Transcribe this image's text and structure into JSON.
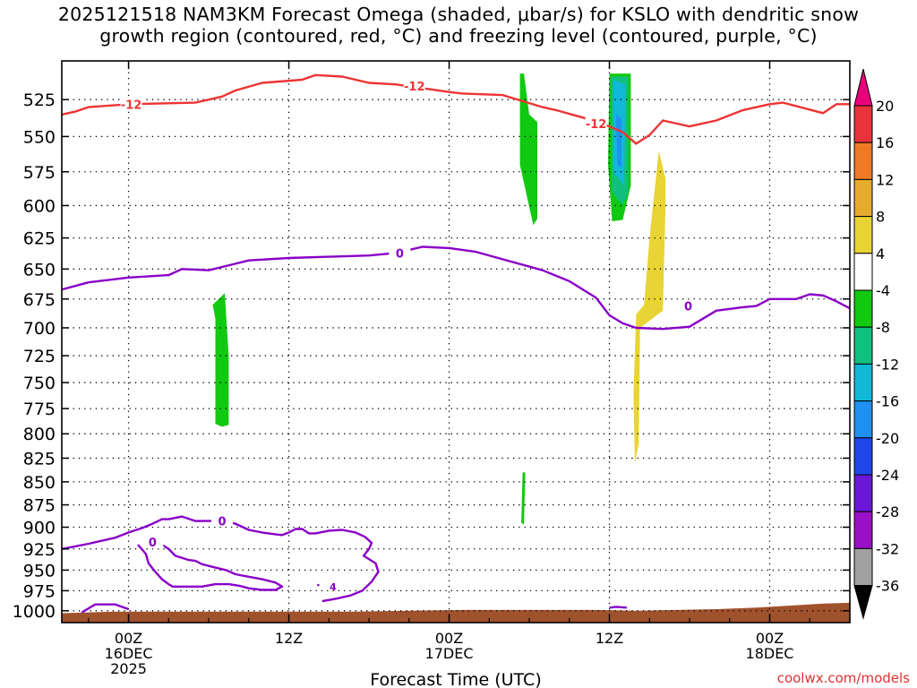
{
  "title_line1": "2025121518 NAM3KM Forecast Omega (shaded, μbar/s) for KSLO with dendritic snow",
  "title_line2": "growth region (contoured, red, °C) and freezing level (contoured, purple, °C)",
  "watermark": "coolwx.com/models",
  "chart_data": {
    "type": "contour",
    "xlabel": "Forecast Time (UTC)",
    "ylabel": "",
    "x_range_hours": [
      -5,
      54
    ],
    "y_range_hpa": [
      1015,
      500
    ],
    "y_scale": "log-pressure (reversed)",
    "grid": true,
    "y_ticks": [
      525,
      550,
      575,
      600,
      625,
      650,
      675,
      700,
      725,
      750,
      775,
      800,
      825,
      850,
      875,
      900,
      925,
      950,
      975,
      1000
    ],
    "x_ticks": [
      {
        "hour": 0,
        "lines": [
          "00Z",
          "16DEC",
          "2025"
        ]
      },
      {
        "hour": 12,
        "lines": [
          "12Z"
        ]
      },
      {
        "hour": 24,
        "lines": [
          "00Z",
          "17DEC"
        ]
      },
      {
        "hour": 36,
        "lines": [
          "12Z"
        ]
      },
      {
        "hour": 48,
        "lines": [
          "00Z",
          "18DEC"
        ]
      }
    ],
    "colorbar": {
      "labels": [
        "20",
        "16",
        "12",
        "8",
        "4",
        "-4",
        "-8",
        "-12",
        "-16",
        "-20",
        "-24",
        "-28",
        "-32",
        "-36"
      ],
      "colors": [
        "#e8007a",
        "#e8333a",
        "#ee7a26",
        "#e6ab2e",
        "#e8d434",
        "#ffffff",
        "#11c911",
        "#10c07e",
        "#11b8d8",
        "#1f8ff0",
        "#1f46e8",
        "#6a17d8",
        "#9a10c7",
        "#a0a0a0",
        "#000000"
      ]
    },
    "freezing_level_label": "0",
    "freezing_level": [
      [
        -5,
        667
      ],
      [
        -3,
        661
      ],
      [
        0,
        657
      ],
      [
        3,
        655
      ],
      [
        4,
        650
      ],
      [
        6,
        651
      ],
      [
        9,
        643
      ],
      [
        12,
        641
      ],
      [
        15,
        640
      ],
      [
        18,
        639
      ],
      [
        20,
        637
      ],
      [
        22,
        632
      ],
      [
        24,
        633
      ],
      [
        26,
        636
      ],
      [
        28,
        642
      ],
      [
        31,
        651
      ],
      [
        33,
        660
      ],
      [
        35,
        674
      ],
      [
        36,
        689
      ],
      [
        37,
        696
      ],
      [
        38,
        700
      ],
      [
        40,
        701
      ],
      [
        42,
        699
      ],
      [
        44,
        685
      ],
      [
        46,
        682
      ],
      [
        47,
        681
      ],
      [
        48,
        675
      ],
      [
        50,
        675
      ],
      [
        51,
        671
      ],
      [
        52,
        672
      ],
      [
        53,
        677
      ],
      [
        54,
        683
      ]
    ],
    "dgz_label": "-12",
    "dgz_line": [
      [
        -5,
        535
      ],
      [
        -4,
        533
      ],
      [
        -3,
        530
      ],
      [
        0,
        528
      ],
      [
        5,
        527
      ],
      [
        7,
        523
      ],
      [
        8,
        519
      ],
      [
        10,
        514
      ],
      [
        13,
        512
      ],
      [
        14,
        509
      ],
      [
        16,
        510
      ],
      [
        18,
        514
      ],
      [
        20,
        515
      ],
      [
        24,
        520
      ],
      [
        25,
        521
      ],
      [
        28,
        522
      ],
      [
        31,
        530
      ],
      [
        32,
        532
      ],
      [
        34,
        537
      ],
      [
        35,
        540
      ],
      [
        36,
        543
      ],
      [
        37,
        547
      ],
      [
        38,
        555
      ],
      [
        39,
        549
      ],
      [
        40,
        539
      ],
      [
        42,
        543
      ],
      [
        44,
        539
      ],
      [
        46,
        532
      ],
      [
        48,
        528
      ],
      [
        49,
        527
      ],
      [
        52,
        534
      ],
      [
        53,
        528
      ],
      [
        54,
        528
      ]
    ],
    "omega_regions": [
      {
        "color": "#11c911",
        "range": "-8 to -4",
        "poly": [
          [
            6.3,
            680
          ],
          [
            6.5,
            692
          ],
          [
            6.5,
            790
          ],
          [
            7.0,
            793
          ],
          [
            7.5,
            791
          ],
          [
            7.5,
            725
          ],
          [
            7.2,
            670
          ]
        ]
      },
      {
        "color": "#11c911",
        "range": "-8 to -4",
        "poly": [
          [
            29.3,
            508
          ],
          [
            29.3,
            570
          ],
          [
            30.3,
            615
          ],
          [
            30.6,
            610
          ],
          [
            30.6,
            540
          ],
          [
            30.0,
            535
          ],
          [
            29.6,
            508
          ]
        ]
      },
      {
        "color": "#11c911",
        "range": "-8 to -4",
        "poly": [
          [
            29.5,
            840
          ],
          [
            29.4,
            895
          ],
          [
            29.6,
            897
          ],
          [
            29.7,
            840
          ]
        ]
      },
      {
        "color": "#11c911",
        "range": "-8 to -4",
        "poly": [
          [
            36.0,
            508
          ],
          [
            35.9,
            570
          ],
          [
            36.2,
            612
          ],
          [
            37.0,
            611
          ],
          [
            37.6,
            585
          ],
          [
            37.6,
            508
          ]
        ]
      },
      {
        "color": "#10c07e",
        "range": "-12 to -8",
        "poly": [
          [
            36.1,
            510
          ],
          [
            36.2,
            590
          ],
          [
            37.0,
            600
          ],
          [
            37.4,
            590
          ],
          [
            37.4,
            510
          ]
        ]
      },
      {
        "color": "#11b8d8",
        "range": "-16 to -12",
        "poly": [
          [
            36.3,
            512
          ],
          [
            36.3,
            575
          ],
          [
            37.1,
            585
          ],
          [
            37.2,
            515
          ]
        ]
      },
      {
        "color": "#1f8ff0",
        "range": "-20 to -16",
        "poly": [
          [
            36.5,
            535
          ],
          [
            36.6,
            570
          ],
          [
            36.9,
            572
          ],
          [
            36.9,
            538
          ]
        ]
      },
      {
        "color": "#e8d434",
        "range": "4 to 8",
        "poly": [
          [
            39.7,
            560
          ],
          [
            39.0,
            625
          ],
          [
            38.6,
            680
          ],
          [
            38.0,
            688
          ],
          [
            37.8,
            760
          ],
          [
            37.9,
            830
          ],
          [
            38.2,
            810
          ],
          [
            38.3,
            700
          ],
          [
            40.0,
            685
          ],
          [
            40.2,
            600
          ],
          [
            40.2,
            580
          ]
        ]
      }
    ],
    "freezing_contours": [
      [
        [
          -5,
          925
        ],
        [
          -4,
          922
        ],
        [
          -3,
          919
        ],
        [
          -1,
          912
        ],
        [
          0,
          906
        ],
        [
          1,
          901
        ],
        [
          1.8,
          896
        ],
        [
          2.5,
          891
        ],
        [
          3,
          891
        ],
        [
          4,
          888
        ],
        [
          5,
          893
        ],
        [
          6,
          893
        ],
        [
          7,
          893
        ],
        [
          8,
          896
        ],
        [
          9,
          903
        ],
        [
          10,
          906
        ],
        [
          11,
          908
        ],
        [
          11.5,
          909
        ],
        [
          12,
          906
        ],
        [
          12.5,
          902
        ],
        [
          13,
          902
        ],
        [
          13.5,
          907
        ],
        [
          14,
          907
        ],
        [
          15,
          904
        ],
        [
          16,
          903
        ],
        [
          17,
          906
        ],
        [
          17.7,
          911
        ],
        [
          18.2,
          918
        ],
        [
          18.0,
          925
        ],
        [
          17.6,
          933
        ],
        [
          18.5,
          942
        ],
        [
          18.7,
          952
        ],
        [
          18.2,
          964
        ],
        [
          17.5,
          975
        ],
        [
          16.6,
          981
        ],
        [
          15.5,
          985
        ],
        [
          14.5,
          988
        ]
      ],
      [
        [
          0.7,
          920
        ],
        [
          1.3,
          931
        ],
        [
          1.5,
          942
        ],
        [
          2.0,
          952
        ],
        [
          2.5,
          961
        ],
        [
          3.0,
          967
        ],
        [
          3.3,
          970
        ],
        [
          4.5,
          970
        ],
        [
          5.5,
          970
        ],
        [
          6.5,
          967
        ],
        [
          7.5,
          967
        ],
        [
          8.3,
          969
        ],
        [
          9,
          972
        ],
        [
          10,
          974
        ],
        [
          11,
          974
        ],
        [
          11.5,
          970
        ],
        [
          11,
          965
        ],
        [
          10,
          961
        ],
        [
          9,
          958
        ],
        [
          8,
          955
        ],
        [
          7.3,
          950
        ],
        [
          6.5,
          947
        ],
        [
          5.5,
          943
        ],
        [
          5,
          939
        ],
        [
          4.5,
          938
        ],
        [
          3.5,
          933
        ],
        [
          3,
          925
        ],
        [
          2.5,
          920
        ],
        [
          1.5,
          917
        ]
      ],
      [
        [
          -3.5,
          1002
        ],
        [
          -2.5,
          992
        ],
        [
          -1.0,
          992
        ],
        [
          -0.5,
          995
        ],
        [
          0,
          998
        ]
      ],
      [
        [
          36.0,
          996
        ],
        [
          36.5,
          995
        ],
        [
          37.3,
          996
        ]
      ]
    ],
    "small_label": "4",
    "ground_level_hpa": [
      [
        -5,
        1003
      ],
      [
        -1,
        1001
      ],
      [
        4,
        1001
      ],
      [
        17,
        1001
      ],
      [
        21,
        1000
      ],
      [
        25,
        999
      ],
      [
        35,
        999
      ],
      [
        38,
        1000
      ],
      [
        41,
        999
      ],
      [
        44,
        998
      ],
      [
        47,
        996
      ],
      [
        50,
        993
      ],
      [
        52,
        991
      ],
      [
        54,
        990
      ]
    ]
  }
}
